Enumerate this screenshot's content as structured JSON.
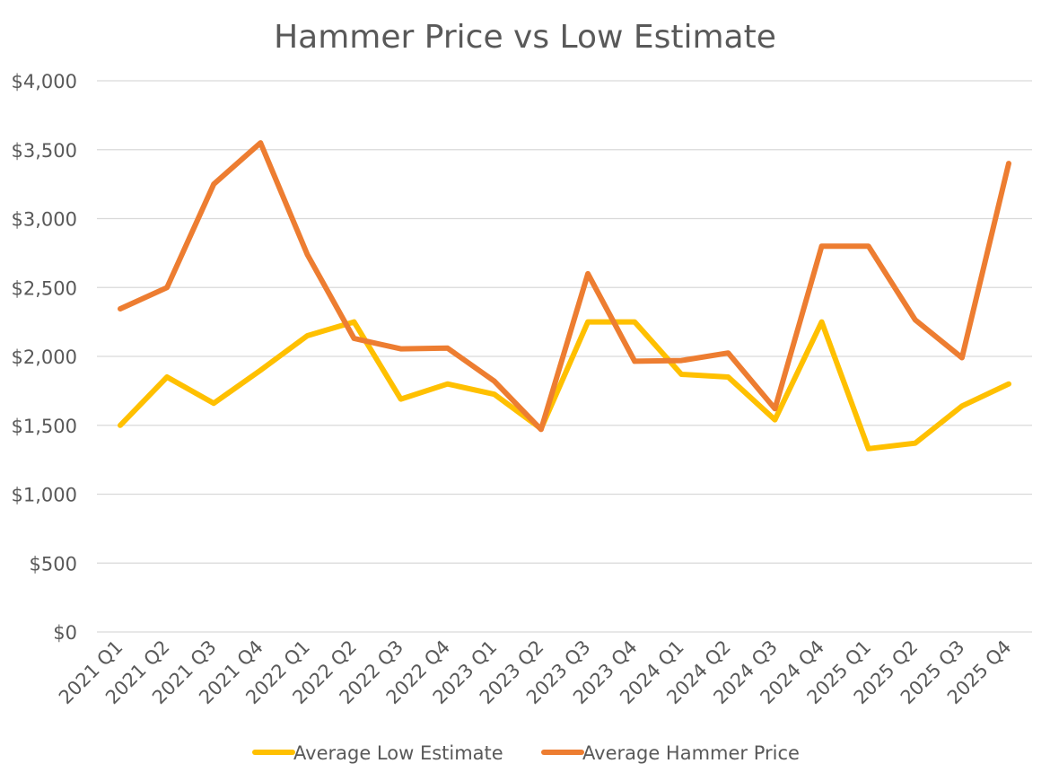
{
  "chart_data": {
    "type": "line",
    "title": "Hammer Price vs Low Estimate",
    "xlabel": "",
    "ylabel": "",
    "categories": [
      "2021 Q1",
      "2021 Q2",
      "2021 Q3",
      "2021 Q4",
      "2022 Q1",
      "2022 Q2",
      "2022 Q3",
      "2022 Q4",
      "2023 Q1",
      "2023 Q2",
      "2023 Q3",
      "2023 Q4",
      "2024 Q1",
      "2024 Q2",
      "2024 Q3",
      "2024 Q4",
      "2025 Q1",
      "2025 Q2",
      "2025 Q3",
      "2025 Q4"
    ],
    "ylim": [
      0,
      4000
    ],
    "yticks": [
      0,
      500,
      1000,
      1500,
      2000,
      2500,
      3000,
      3500,
      4000
    ],
    "ytick_labels": [
      "$0",
      "$500",
      "$1,000",
      "$1,500",
      "$2,000",
      "$2,500",
      "$3,000",
      "$3,500",
      "$4,000"
    ],
    "grid": true,
    "legend_position": "bottom",
    "series": [
      {
        "name": "Average Low Estimate",
        "color": "#FFC000",
        "values": [
          1500,
          1850,
          1660,
          1900,
          2150,
          2250,
          1690,
          1800,
          1725,
          1475,
          2250,
          2250,
          1870,
          1850,
          1540,
          2250,
          1330,
          1370,
          1640,
          1800
        ]
      },
      {
        "name": "Average Hammer Price",
        "color": "#ED7D31",
        "values": [
          2345,
          2500,
          3250,
          3550,
          2740,
          2130,
          2055,
          2060,
          1820,
          1470,
          2600,
          1965,
          1970,
          2025,
          1620,
          2800,
          2800,
          2265,
          1990,
          3400
        ]
      }
    ]
  }
}
